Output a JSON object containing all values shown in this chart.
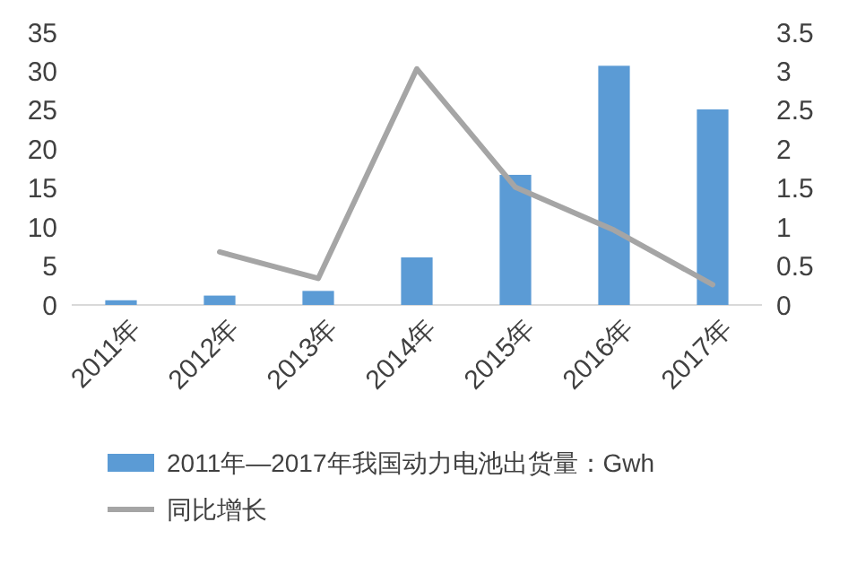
{
  "chart_data": {
    "type": "bar",
    "categories": [
      "2011年",
      "2012年",
      "2013年",
      "2014年",
      "2015年",
      "2016年",
      "2017年"
    ],
    "series": [
      {
        "name": "2011年—2017年我国动力电池出货量：Gwh",
        "color": "#5b9bd5",
        "values": [
          0.6,
          1.2,
          1.8,
          6.1,
          16.7,
          30.7,
          25.1
        ]
      },
      {
        "name": "同比增长",
        "type": "line",
        "axis": "y2",
        "color": "#a5a5a5",
        "values": [
          null,
          0.68,
          0.34,
          3.03,
          1.51,
          0.96,
          0.26
        ]
      }
    ],
    "ylim": [
      0,
      35
    ],
    "yticks": [
      0,
      5,
      10,
      15,
      20,
      25,
      30,
      35
    ],
    "y2lim": [
      0,
      3.5
    ],
    "y2ticks": [
      0,
      0.5,
      1,
      1.5,
      2,
      2.5,
      3,
      3.5
    ],
    "legend": "bottom"
  }
}
